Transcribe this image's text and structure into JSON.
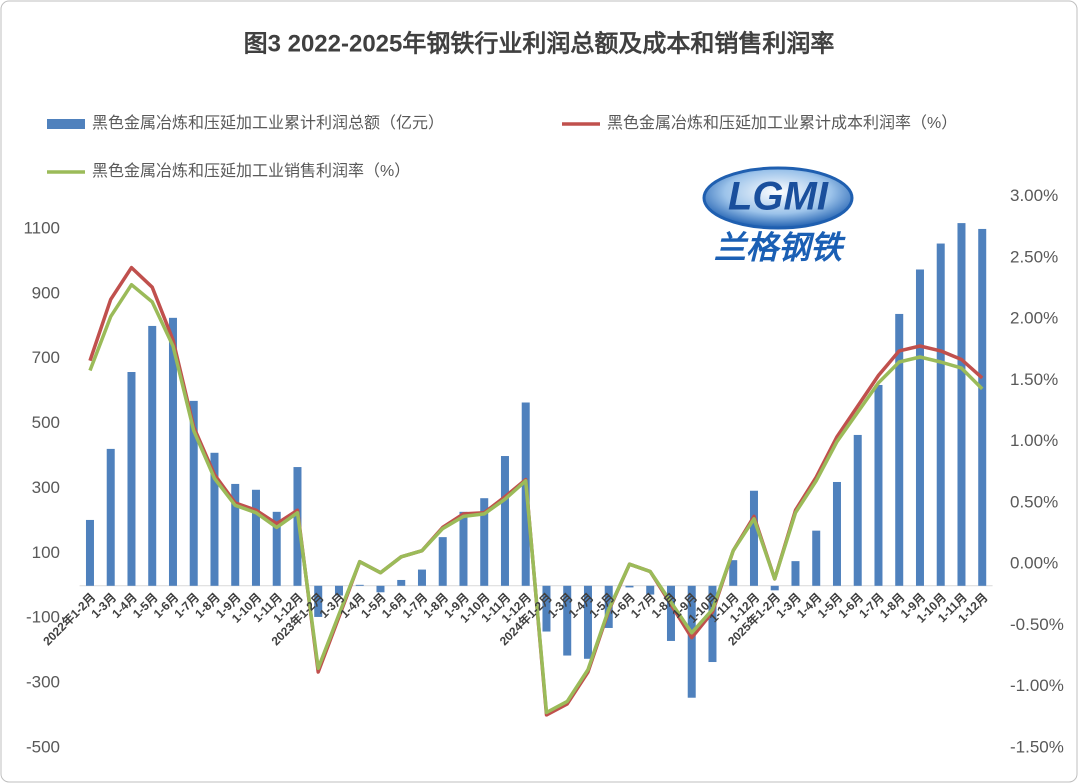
{
  "chart_data": {
    "type": "bar",
    "title": "图3 2022-2025年钢铁行业利润总额及成本和销售利润率",
    "logo": {
      "text": "LGMI",
      "subtitle": "兰格钢铁"
    },
    "categories": [
      "2022年1-2月",
      "1-3月",
      "1-4月",
      "1-5月",
      "1-6月",
      "1-7月",
      "1-8月",
      "1-9月",
      "1-10月",
      "1-11月",
      "1-12月",
      "2023年1-2月",
      "1-3月",
      "1-4月",
      "1-5月",
      "1-6月",
      "1-7月",
      "1-8月",
      "1-9月",
      "1-10月",
      "1-11月",
      "1-12月",
      "2024年1-2月",
      "1-3月",
      "1-4月",
      "1-5月",
      "1-6月",
      "1-7月",
      "1-8月",
      "1-9月",
      "1-10月",
      "1-11月",
      "1-12月",
      "2025年1-2月",
      "1-3月",
      "1-4月",
      "1-5月",
      "1-6月",
      "1-7月",
      "1-8月",
      "1-9月",
      "1-10月",
      "1-11月",
      "1-12月"
    ],
    "series": [
      {
        "name": "黑色金属冶炼和压延加工业累计利润总额（亿元）",
        "type": "bar",
        "color": "#4f81bd",
        "values": [
          203,
          422,
          659,
          801,
          826,
          570,
          410,
          314,
          296,
          228,
          366,
          -96,
          -30,
          3,
          -20,
          18,
          50,
          150,
          228,
          270,
          400,
          565,
          -141,
          -215,
          -225,
          -130,
          -5,
          -27,
          -170,
          -345,
          -235,
          79,
          293,
          -14,
          76,
          170,
          320,
          465,
          619,
          838,
          975,
          1055,
          1118,
          1100
        ]
      },
      {
        "name": "黑色金属冶炼和压延加工业累计成本利润率（%）",
        "type": "line",
        "axis": "y2",
        "color": "#c0504d",
        "values": [
          1.66,
          2.16,
          2.42,
          2.26,
          1.83,
          1.12,
          0.73,
          0.5,
          0.44,
          0.33,
          0.44,
          -0.88,
          -0.43,
          0.02,
          -0.07,
          0.06,
          0.11,
          0.3,
          0.41,
          0.42,
          0.55,
          0.69,
          -1.23,
          -1.14,
          -0.88,
          -0.38,
          0.0,
          -0.06,
          -0.33,
          -0.6,
          -0.39,
          0.11,
          0.39,
          -0.12,
          0.44,
          0.71,
          1.04,
          1.29,
          1.54,
          1.74,
          1.78,
          1.74,
          1.67,
          1.52
        ]
      },
      {
        "name": "黑色金属冶炼和压延加工业销售利润率（%）",
        "type": "line",
        "axis": "y2",
        "color": "#9bbb59",
        "values": [
          1.58,
          2.02,
          2.28,
          2.14,
          1.78,
          1.09,
          0.7,
          0.48,
          0.42,
          0.3,
          0.42,
          -0.85,
          -0.41,
          0.02,
          -0.07,
          0.06,
          0.11,
          0.29,
          0.39,
          0.41,
          0.53,
          0.68,
          -1.21,
          -1.12,
          -0.86,
          -0.37,
          0.0,
          -0.06,
          -0.31,
          -0.56,
          -0.37,
          0.11,
          0.37,
          -0.12,
          0.42,
          0.68,
          1.0,
          1.24,
          1.48,
          1.65,
          1.69,
          1.65,
          1.6,
          1.43
        ]
      }
    ],
    "ylim": [
      -500,
      1200
    ],
    "yticks": [
      -500,
      -300,
      -100,
      100,
      300,
      500,
      700,
      900,
      1100
    ],
    "y2lim": [
      -1.5,
      3.0
    ],
    "y2ticks": [
      {
        "value": -1.5,
        "label": "-1.50%"
      },
      {
        "value": -1.0,
        "label": "-1.00%"
      },
      {
        "value": -0.5,
        "label": "-0.50%"
      },
      {
        "value": 0,
        "label": "0.00%"
      },
      {
        "value": 0.5,
        "label": "0.50%"
      },
      {
        "value": 1.0,
        "label": "1.00%"
      },
      {
        "value": 1.5,
        "label": "1.50%"
      },
      {
        "value": 2.0,
        "label": "2.00%"
      },
      {
        "value": 2.5,
        "label": "2.50%"
      },
      {
        "value": 3.0,
        "label": "3.00%"
      }
    ],
    "grid": false
  }
}
